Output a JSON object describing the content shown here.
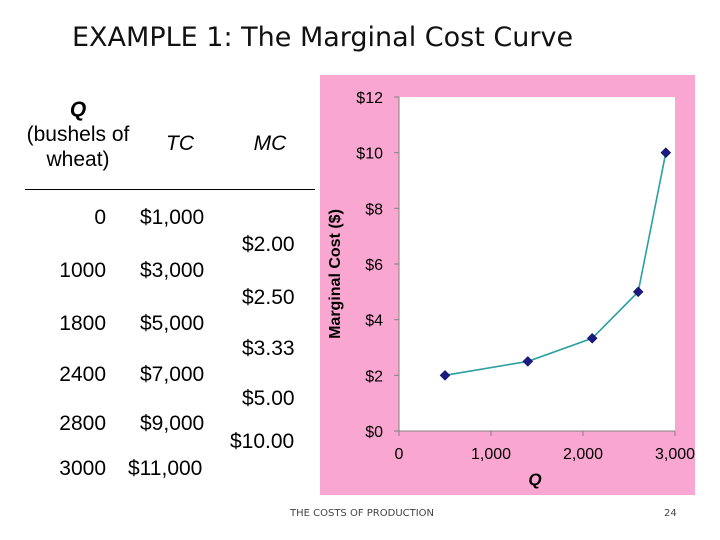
{
  "title": "EXAMPLE 1:  The Marginal Cost Curve",
  "table": {
    "header_q_symbol": "Q",
    "header_q_desc": "(bushels of wheat)",
    "header_tc": "TC",
    "header_mc": "MC",
    "rows": [
      {
        "q": "0",
        "tc": "$1,000"
      },
      {
        "q": "1000",
        "tc": "$3,000"
      },
      {
        "q": "1800",
        "tc": "$5,000"
      },
      {
        "q": "2400",
        "tc": "$7,000"
      },
      {
        "q": "2800",
        "tc": "$9,000"
      },
      {
        "q": "3000",
        "tc": "$11,000"
      }
    ],
    "mc": [
      "$2.00",
      "$2.50",
      "$3.33",
      "$5.00",
      "$10.00"
    ]
  },
  "chart_data": {
    "type": "line",
    "title": "",
    "xlabel": "Q",
    "ylabel": "Marginal Cost ($)",
    "xlim": [
      0,
      3000
    ],
    "ylim": [
      0,
      12
    ],
    "xticks": [
      0,
      1000,
      2000,
      3000
    ],
    "xtick_labels": [
      "0",
      "1,000",
      "2,000",
      "3,000"
    ],
    "yticks": [
      0,
      2,
      4,
      6,
      8,
      10,
      12
    ],
    "ytick_labels": [
      "$0",
      "$2",
      "$4",
      "$6",
      "$8",
      "$10",
      "$12"
    ],
    "grid": false,
    "legend": "none",
    "background": "#f9a6d1",
    "plot_background": "#ffffff",
    "series": [
      {
        "color": "#2ca0a0",
        "marker_color": "#1a1a80",
        "x": [
          500,
          1400,
          2100,
          2600,
          2900
        ],
        "y": [
          2.0,
          2.5,
          3.33,
          5.0,
          10.0
        ]
      }
    ]
  },
  "footer": {
    "source": "THE COSTS OF PRODUCTION",
    "page": "24"
  }
}
